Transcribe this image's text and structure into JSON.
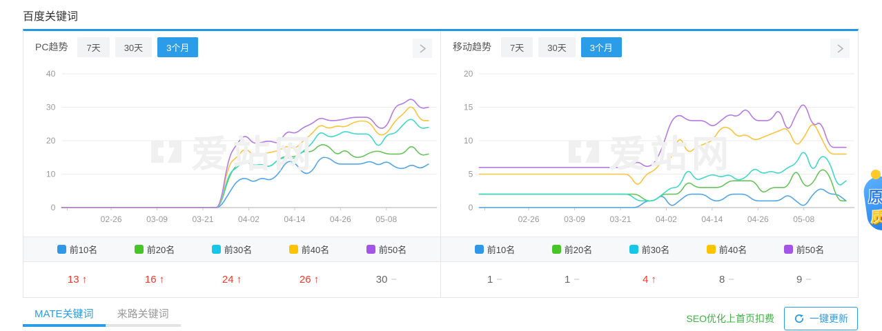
{
  "page": {
    "title": "百度关键词"
  },
  "watermark_text": "爱站网",
  "colors": {
    "accent_blue": "#2b9de8",
    "up_red": "#f3372b",
    "flat_gray": "#c5c5c5",
    "note_green": "#3cb342"
  },
  "panels": [
    {
      "label": "PC趋势",
      "tabs": [
        {
          "label": "7天",
          "active": false
        },
        {
          "label": "30天",
          "active": false
        },
        {
          "label": "3个月",
          "active": true
        }
      ],
      "legend": [
        {
          "label": "前10名",
          "color": "#2e97e8"
        },
        {
          "label": "前20名",
          "color": "#47c426"
        },
        {
          "label": "前30名",
          "color": "#16c6e6"
        },
        {
          "label": "前40名",
          "color": "#fcc400"
        },
        {
          "label": "前50名",
          "color": "#a455e8"
        }
      ],
      "values": [
        {
          "num": "13",
          "dir": "up"
        },
        {
          "num": "16",
          "dir": "up"
        },
        {
          "num": "24",
          "dir": "up"
        },
        {
          "num": "26",
          "dir": "up"
        },
        {
          "num": "30",
          "dir": "flat"
        }
      ],
      "chart_data": {
        "type": "line",
        "ylim": [
          0,
          40
        ],
        "y_ticks": [
          0,
          10,
          20,
          30,
          40
        ],
        "x_ticks": [
          "02-26",
          "03-09",
          "03-21",
          "04-02",
          "04-14",
          "04-26",
          "05-08"
        ],
        "legend_position": "bottom",
        "grid": true,
        "series": [
          {
            "name": "前10名",
            "color": "#54a5e5",
            "values": [
              0,
              0,
              0,
              0,
              0,
              0,
              0,
              0,
              0,
              0,
              0,
              0,
              0,
              0,
              0,
              0,
              0,
              0,
              0,
              0,
              4,
              8,
              9,
              7.5,
              9,
              8,
              10,
              14,
              13.5,
              10,
              10.5,
              15,
              15,
              13,
              13,
              13,
              13,
              14,
              12.5,
              14,
              12,
              11.5,
              13,
              11.5,
              13
            ]
          },
          {
            "name": "前20名",
            "color": "#66c45a",
            "values": [
              0,
              0,
              0,
              0,
              0,
              0,
              0,
              0,
              0,
              0,
              0,
              0,
              0,
              0,
              0,
              0,
              0,
              0,
              0,
              0,
              9,
              13,
              14,
              12.5,
              13,
              12,
              14.5,
              15.5,
              15,
              17,
              16.5,
              19,
              18.5,
              15.5,
              17.5,
              15,
              15,
              16.5,
              17,
              16,
              16,
              16,
              19,
              15.5,
              16
            ]
          },
          {
            "name": "前30名",
            "color": "#40d8c8",
            "values": [
              0,
              0,
              0,
              0,
              0,
              0,
              0,
              0,
              0,
              0,
              0,
              0,
              0,
              0,
              0,
              0,
              0,
              0,
              0,
              0,
              10,
              12,
              14,
              12.5,
              13,
              12,
              14.5,
              15,
              14.5,
              17,
              19,
              23,
              21,
              21.5,
              23,
              22,
              22,
              22,
              17.5,
              22,
              22,
              25,
              27,
              23.5,
              24
            ]
          },
          {
            "name": "前40名",
            "color": "#fcc43d",
            "values": [
              0,
              0,
              0,
              0,
              0,
              0,
              0,
              0,
              0,
              0,
              0,
              0,
              0,
              0,
              0,
              0,
              0,
              0,
              0,
              0,
              13,
              15,
              18,
              15.5,
              16,
              16.5,
              17,
              18.5,
              17.5,
              20,
              22,
              25,
              23.5,
              24.5,
              24,
              25.5,
              26,
              25.5,
              21.5,
              22,
              26,
              28,
              31,
              26,
              26
            ]
          },
          {
            "name": "前50名",
            "color": "#b57ae2",
            "values": [
              0,
              0,
              0,
              0,
              0,
              0,
              0,
              0,
              0,
              0,
              0,
              0,
              0,
              0,
              0,
              0,
              0,
              0,
              0,
              0,
              15,
              19,
              22,
              19,
              19.5,
              20,
              19,
              23,
              22,
              24,
              25,
              27,
              26,
              26,
              26.5,
              27,
              27,
              27,
              23.5,
              24,
              30.5,
              31,
              33,
              29.5,
              30
            ]
          }
        ]
      }
    },
    {
      "label": "移动趋势",
      "tabs": [
        {
          "label": "7天",
          "active": false
        },
        {
          "label": "30天",
          "active": false
        },
        {
          "label": "3个月",
          "active": true
        }
      ],
      "legend": [
        {
          "label": "前10名",
          "color": "#2e97e8"
        },
        {
          "label": "前20名",
          "color": "#47c426"
        },
        {
          "label": "前30名",
          "color": "#16c6e6"
        },
        {
          "label": "前40名",
          "color": "#fcc400"
        },
        {
          "label": "前50名",
          "color": "#a455e8"
        }
      ],
      "values": [
        {
          "num": "1",
          "dir": "flat"
        },
        {
          "num": "1",
          "dir": "flat"
        },
        {
          "num": "4",
          "dir": "up"
        },
        {
          "num": "8",
          "dir": "flat"
        },
        {
          "num": "9",
          "dir": "flat"
        }
      ],
      "chart_data": {
        "type": "line",
        "ylim": [
          0,
          20
        ],
        "y_ticks": [
          0,
          5,
          10,
          15,
          20
        ],
        "x_ticks": [
          "02-26",
          "03-09",
          "03-21",
          "04-02",
          "04-14",
          "04-26",
          "05-08"
        ],
        "legend_position": "bottom",
        "grid": true,
        "series": [
          {
            "name": "前10名",
            "color": "#54a5e5",
            "values": [
              0,
              0,
              0,
              0,
              0,
              0,
              0,
              0,
              0,
              0,
              0,
              0,
              0,
              0,
              0,
              0,
              0,
              0,
              0,
              0,
              1,
              1,
              2,
              0,
              1,
              2,
              2,
              2,
              1,
              1,
              2,
              2,
              2,
              1,
              1,
              1,
              1,
              2,
              1,
              0,
              2,
              3,
              2,
              2,
              1
            ]
          },
          {
            "name": "前20名",
            "color": "#66c45a",
            "values": [
              2,
              2,
              2,
              2,
              2,
              2,
              2,
              2,
              2,
              2,
              2,
              2,
              2,
              2,
              2,
              2,
              2,
              2,
              2,
              2,
              1,
              1,
              2,
              2,
              2,
              4,
              3,
              3,
              3,
              3,
              4,
              4,
              4,
              4,
              2,
              3,
              3,
              3,
              6,
              3,
              3.5,
              6,
              5,
              1,
              1
            ]
          },
          {
            "name": "前30名",
            "color": "#40d8c8",
            "values": [
              2,
              2,
              2,
              2,
              2,
              2,
              2,
              2,
              2,
              2,
              2,
              2,
              2,
              2,
              2,
              2,
              2,
              2,
              2,
              1,
              1,
              1,
              2,
              3,
              3,
              6,
              4,
              4.5,
              5,
              4.5,
              5,
              4,
              4.5,
              6,
              5,
              5.5,
              5,
              6,
              6.5,
              9,
              5,
              8,
              7,
              3,
              4
            ]
          },
          {
            "name": "前40名",
            "color": "#fcc43d",
            "values": [
              5,
              5,
              5,
              5,
              5,
              5,
              5,
              5,
              5,
              5,
              5,
              5,
              5,
              5,
              5,
              5,
              5,
              5,
              5,
              3,
              5,
              5.5,
              7,
              7,
              11,
              8,
              9,
              9.5,
              10,
              12,
              12,
              10.5,
              11,
              10,
              10.5,
              11,
              11.5,
              12,
              9,
              10.5,
              13,
              10.5,
              8,
              8,
              8
            ]
          },
          {
            "name": "前50名",
            "color": "#b57ae2",
            "values": [
              6,
              6,
              6,
              6,
              6,
              6,
              6,
              6,
              6,
              6,
              6,
              6,
              6,
              6,
              6,
              6,
              6,
              6,
              6,
              7,
              6,
              6.5,
              9,
              13,
              14,
              13,
              13,
              13,
              12,
              13,
              14,
              13.5,
              15,
              13,
              13,
              13,
              15,
              11,
              14,
              16,
              12,
              13,
              9,
              9,
              9
            ]
          }
        ]
      }
    }
  ],
  "footer": {
    "tabs": [
      {
        "label": "MATE关键词",
        "active": true
      },
      {
        "label": "来路关键词",
        "active": false
      }
    ],
    "seo_note": "SEO优化上首页扣费",
    "update_button": "一键更新"
  },
  "sticker": {
    "char_top": "原",
    "char_bottom": "质"
  }
}
